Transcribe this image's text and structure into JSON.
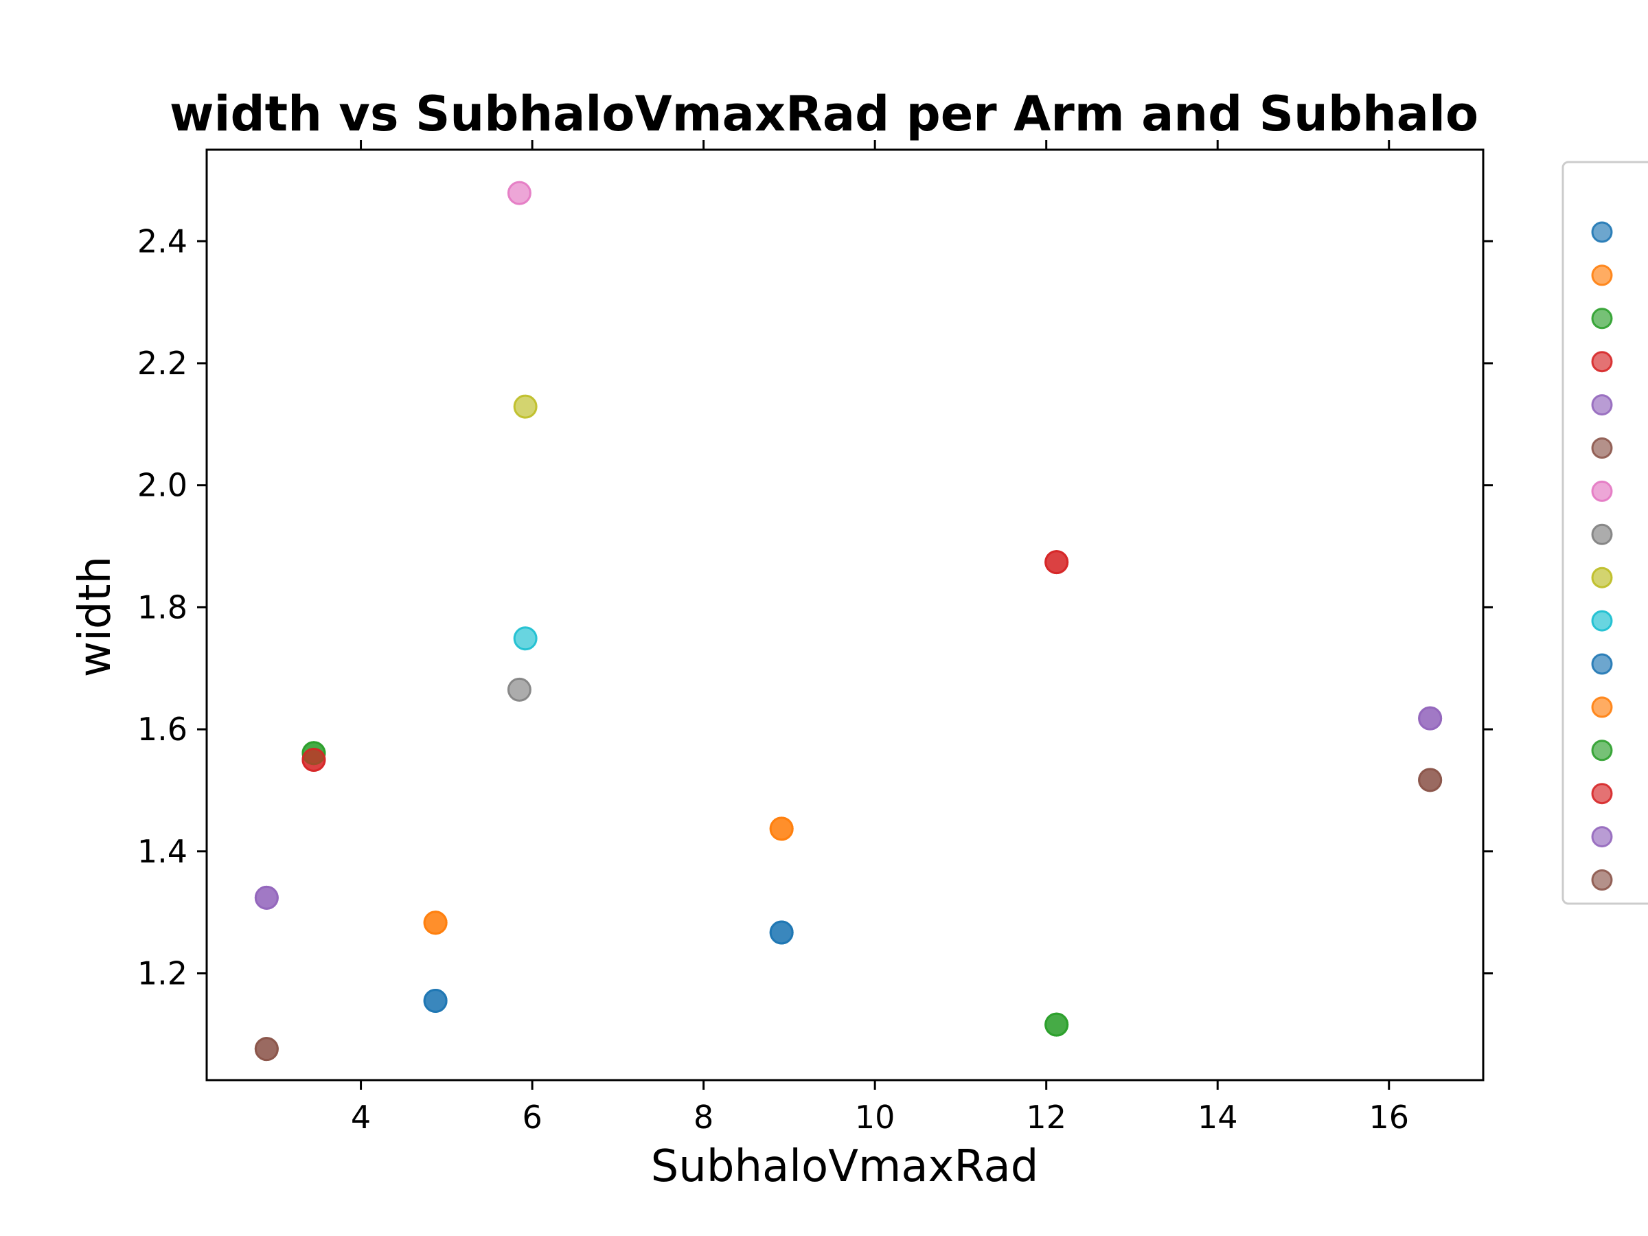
{
  "chart_data": {
    "type": "scatter",
    "title": "width vs SubhaloVmaxRad per Arm and Subhalo",
    "xlabel": "SubhaloVmaxRad",
    "ylabel": "width",
    "xlim": [
      2.2,
      17.1
    ],
    "ylim": [
      1.025,
      2.55
    ],
    "xticks": [
      4,
      6,
      8,
      10,
      12,
      14,
      16
    ],
    "xtick_labels": [
      "4",
      "6",
      "8",
      "10",
      "12",
      "14",
      "16"
    ],
    "yticks": [
      1.2,
      1.4,
      1.6,
      1.8,
      2.0,
      2.2,
      2.4
    ],
    "ytick_labels": [
      "1.2",
      "1.4",
      "1.6",
      "1.8",
      "2.0",
      "2.2",
      "2.4"
    ],
    "grid": false,
    "legend_position": "outside-right",
    "series": [
      {
        "color": "#1f77b4",
        "points": [
          [
            4.87,
            1.155
          ],
          [
            8.91,
            1.267
          ]
        ]
      },
      {
        "color": "#ff7f0e",
        "points": [
          [
            4.87,
            1.283
          ],
          [
            8.91,
            1.437
          ]
        ]
      },
      {
        "color": "#2ca02c",
        "points": [
          [
            3.45,
            1.561
          ],
          [
            12.12,
            1.116
          ]
        ]
      },
      {
        "color": "#d62728",
        "points": [
          [
            3.45,
            1.55
          ],
          [
            12.12,
            1.874
          ]
        ]
      },
      {
        "color": "#9467bd",
        "points": [
          [
            2.9,
            1.324
          ],
          [
            16.48,
            1.618
          ]
        ]
      },
      {
        "color": "#8c564b",
        "points": [
          [
            2.9,
            1.076
          ],
          [
            16.48,
            1.517
          ]
        ]
      },
      {
        "color": "#e377c2",
        "points": [
          [
            5.85,
            2.479
          ]
        ]
      },
      {
        "color": "#7f7f7f",
        "points": [
          [
            5.85,
            1.665
          ]
        ]
      },
      {
        "color": "#bcbd22",
        "points": [
          [
            5.92,
            2.129
          ]
        ]
      },
      {
        "color": "#17becf",
        "points": [
          [
            5.92,
            1.749
          ]
        ]
      },
      {
        "color": "#1f77b4",
        "points": [
          [
            4.87,
            1.155
          ],
          [
            8.91,
            1.267
          ]
        ]
      },
      {
        "color": "#ff7f0e",
        "points": [
          [
            4.87,
            1.283
          ],
          [
            8.91,
            1.437
          ]
        ]
      },
      {
        "color": "#2ca02c",
        "points": [
          [
            3.45,
            1.561
          ],
          [
            12.12,
            1.116
          ]
        ]
      },
      {
        "color": "#d62728",
        "points": [
          [
            3.45,
            1.55
          ],
          [
            12.12,
            1.874
          ]
        ]
      },
      {
        "color": "#9467bd",
        "points": [
          [
            2.9,
            1.324
          ],
          [
            16.48,
            1.618
          ]
        ]
      },
      {
        "color": "#8c564b",
        "points": [
          [
            2.9,
            1.076
          ],
          [
            16.48,
            1.517
          ]
        ]
      }
    ]
  }
}
